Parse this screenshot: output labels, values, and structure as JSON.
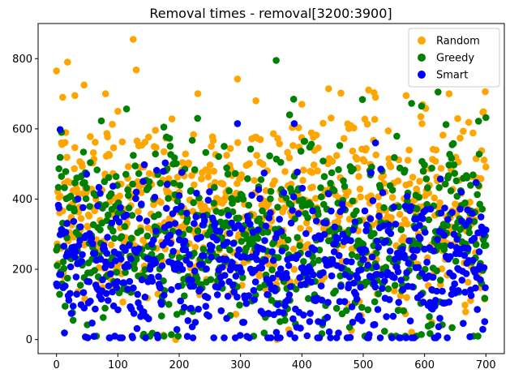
{
  "chart_data": {
    "type": "scatter",
    "title": "Removal times - removal[3200:3900]",
    "xlabel": "",
    "ylabel": "",
    "xlim": [
      -30,
      730
    ],
    "ylim": [
      -40,
      900
    ],
    "xticks": [
      0,
      100,
      200,
      300,
      400,
      500,
      600,
      700
    ],
    "yticks": [
      0,
      200,
      400,
      600,
      800
    ],
    "grid": false,
    "legend_position": "top-right",
    "point_count_per_series": 700,
    "series": [
      {
        "name": "Random",
        "color": "#ffa500",
        "y_range": [
          0,
          855
        ],
        "typical_range": [
          150,
          600
        ],
        "notable_points": [
          {
            "x": 125,
            "y": 855
          },
          {
            "x": 18,
            "y": 790
          },
          {
            "x": 130,
            "y": 768
          },
          {
            "x": 295,
            "y": 742
          },
          {
            "x": 45,
            "y": 725
          },
          {
            "x": 10,
            "y": 690
          },
          {
            "x": 30,
            "y": 695
          },
          {
            "x": 80,
            "y": 700
          },
          {
            "x": 325,
            "y": 680
          },
          {
            "x": 570,
            "y": 695
          },
          {
            "x": 640,
            "y": 700
          },
          {
            "x": 520,
            "y": 690
          },
          {
            "x": 400,
            "y": 670
          },
          {
            "x": 100,
            "y": 650
          }
        ]
      },
      {
        "name": "Greedy",
        "color": "#008000",
        "y_range": [
          10,
          795
        ],
        "typical_range": [
          80,
          500
        ],
        "notable_points": [
          {
            "x": 358,
            "y": 795
          },
          {
            "x": 622,
            "y": 705
          },
          {
            "x": 595,
            "y": 665
          },
          {
            "x": 700,
            "y": 632
          },
          {
            "x": 688,
            "y": 622
          },
          {
            "x": 380,
            "y": 640
          },
          {
            "x": 230,
            "y": 630
          },
          {
            "x": 175,
            "y": 605
          },
          {
            "x": 8,
            "y": 590
          },
          {
            "x": 645,
            "y": 555
          }
        ]
      },
      {
        "name": "Smart",
        "color": "#0000ff",
        "y_range": [
          5,
          615
        ],
        "typical_range": [
          10,
          400
        ],
        "notable_points": [
          {
            "x": 295,
            "y": 615
          },
          {
            "x": 6,
            "y": 598
          },
          {
            "x": 520,
            "y": 560
          },
          {
            "x": 130,
            "y": 420
          },
          {
            "x": 660,
            "y": 420
          },
          {
            "x": 200,
            "y": 410
          },
          {
            "x": 95,
            "y": 10
          },
          {
            "x": 360,
            "y": 5
          }
        ]
      }
    ]
  }
}
